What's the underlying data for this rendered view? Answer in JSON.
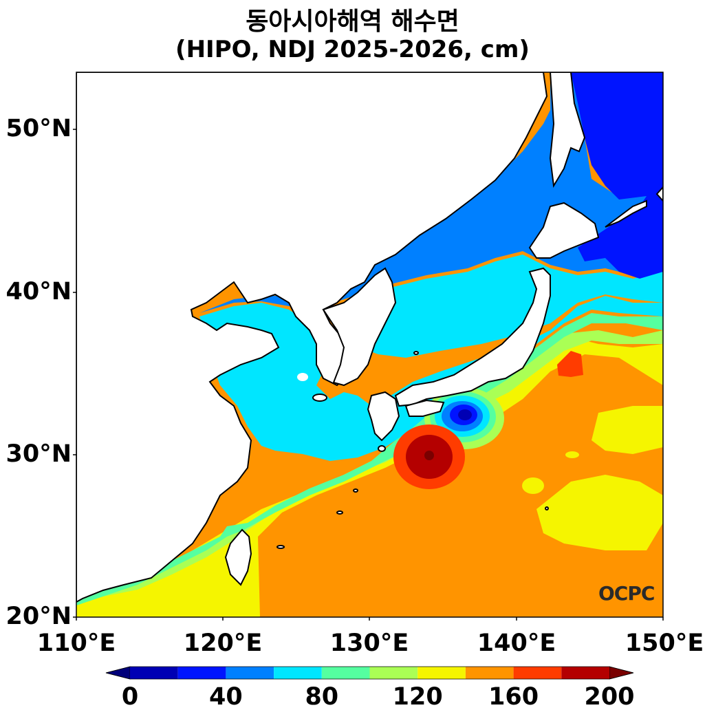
{
  "title_line1": "동아시아해역 해수면",
  "title_line2": "(HIPO, NDJ 2025-2026, cm)",
  "lat_labels": [
    {
      "lat": 50,
      "label": "50°N"
    },
    {
      "lat": 40,
      "label": "40°N"
    },
    {
      "lat": 30,
      "label": "30°N"
    },
    {
      "lat": 20,
      "label": "20°N"
    }
  ],
  "lon_labels": [
    {
      "lon": 110,
      "label": "110°E"
    },
    {
      "lon": 120,
      "label": "120°E"
    },
    {
      "lon": 130,
      "label": "130°E"
    },
    {
      "lon": 140,
      "label": "140°E"
    },
    {
      "lon": 150,
      "label": "150°E"
    }
  ],
  "map_extent": {
    "lon": [
      110,
      150
    ],
    "lat": [
      20,
      53.5
    ]
  },
  "colorbar": {
    "unit": "cm",
    "ticks": [
      {
        "value": 0,
        "label": "0"
      },
      {
        "value": 40,
        "label": "40"
      },
      {
        "value": 80,
        "label": "80"
      },
      {
        "value": 120,
        "label": "120"
      },
      {
        "value": 160,
        "label": "160"
      },
      {
        "value": 200,
        "label": "200"
      }
    ],
    "levels": [
      {
        "from": 0,
        "to": 20,
        "color": "#0000b4"
      },
      {
        "from": 20,
        "to": 40,
        "color": "#0014ff"
      },
      {
        "from": 40,
        "to": 60,
        "color": "#0080ff"
      },
      {
        "from": 60,
        "to": 80,
        "color": "#00e6ff"
      },
      {
        "from": 80,
        "to": 100,
        "color": "#55ffa0"
      },
      {
        "from": 100,
        "to": 120,
        "color": "#aaff55"
      },
      {
        "from": 120,
        "to": 140,
        "color": "#f5f500"
      },
      {
        "from": 140,
        "to": 160,
        "color": "#ff9400"
      },
      {
        "from": 160,
        "to": 180,
        "color": "#ff3c00"
      },
      {
        "from": 180,
        "to": 200,
        "color": "#b40000"
      }
    ],
    "under_color": "#00007a",
    "over_color": "#7a0000"
  },
  "logo": "OCPC"
}
